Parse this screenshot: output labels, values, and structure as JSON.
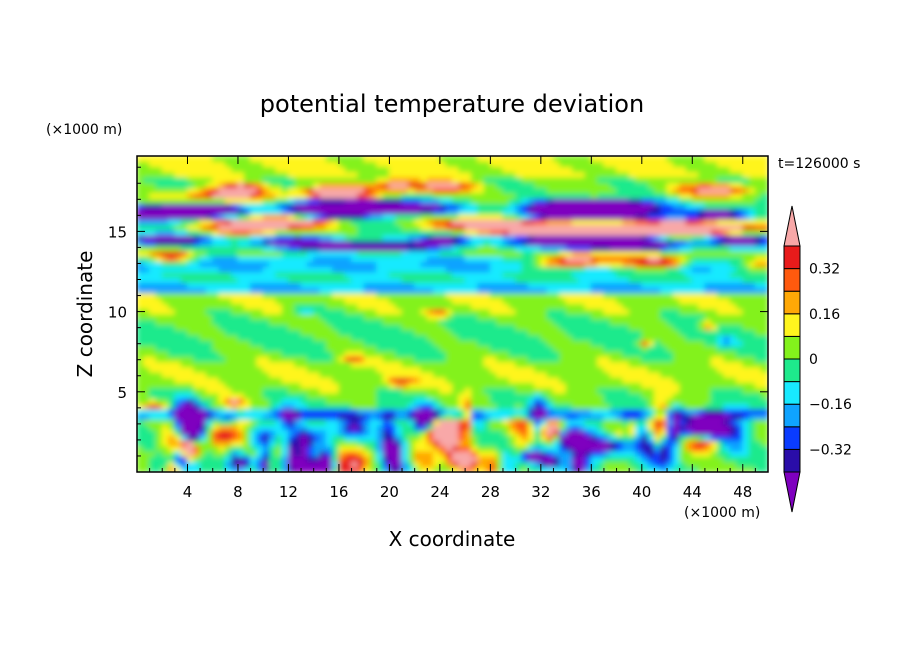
{
  "chart_data": {
    "type": "heatmap",
    "title": "potential temperature deviation",
    "xlabel": "X coordinate",
    "ylabel": "Z coordinate",
    "x_unit": "(×1000 m)",
    "y_unit": "(×1000 m)",
    "time_label": "t=126000 s",
    "xlim": [
      0,
      50
    ],
    "ylim": [
      0,
      19.7
    ],
    "x_ticks": [
      4,
      8,
      12,
      16,
      20,
      24,
      28,
      32,
      36,
      40,
      44,
      48
    ],
    "y_ticks": [
      5,
      10,
      15
    ],
    "colorbar": {
      "levels": [
        -0.4,
        -0.32,
        -0.24,
        -0.16,
        -0.08,
        0,
        0.08,
        0.16,
        0.24,
        0.32,
        0.4
      ],
      "colors": [
        "#7f00bf",
        "#2a0da8",
        "#0a3cff",
        "#0fa3ff",
        "#18eaff",
        "#1eea8c",
        "#83f21c",
        "#fff51e",
        "#ffa806",
        "#ff5a0e",
        "#e81b1b",
        "#f8a8a8"
      ],
      "labels": [
        {
          "value": 0.32,
          "text": "0.32"
        },
        {
          "value": 0.16,
          "text": "0.16"
        },
        {
          "value": 0,
          "text": "0"
        },
        {
          "value": -0.16,
          "text": "−0.16"
        },
        {
          "value": -0.32,
          "text": "−0.32"
        }
      ]
    },
    "bands": [
      {
        "z": [
          14.2,
          16.6
        ],
        "description": "strong alternating positive/negative layers"
      },
      {
        "z": [
          10.8,
          13.4
        ],
        "description": "negative (cyan/blue) layer"
      },
      {
        "z": [
          3.6,
          10.8
        ],
        "description": "near-zero (green) region"
      },
      {
        "z": [
          0,
          3.6
        ],
        "description": "turbulent mixed layer with strong positive and negative cells"
      }
    ]
  }
}
